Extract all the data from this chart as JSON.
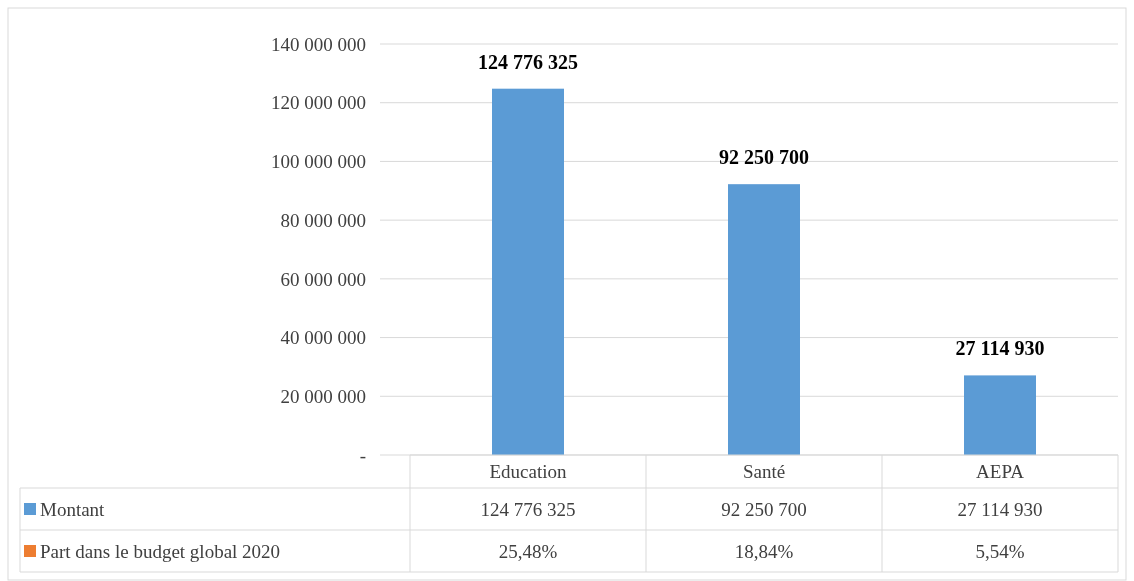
{
  "chart_data": {
    "type": "bar",
    "categories": [
      "Education",
      "Santé",
      "AEPA"
    ],
    "series": [
      {
        "name": "Montant",
        "color": "#5b9bd5",
        "values": [
          124776325,
          92250700,
          27114930
        ],
        "value_labels": [
          "124 776 325",
          "92 250 700",
          "27 114 930"
        ]
      },
      {
        "name": "Part dans le budget global 2020",
        "color": "#ed7d31",
        "values": [
          25.48,
          18.84,
          5.54
        ],
        "value_labels": [
          "25,48%",
          "18,84%",
          "5,54%"
        ]
      }
    ],
    "ylim": [
      0,
      140000000
    ],
    "yticks": [
      {
        "value": 0,
        "label": "-"
      },
      {
        "value": 20000000,
        "label": "20 000 000"
      },
      {
        "value": 40000000,
        "label": "40 000 000"
      },
      {
        "value": 60000000,
        "label": "60 000 000"
      },
      {
        "value": 80000000,
        "label": "80 000 000"
      },
      {
        "value": 100000000,
        "label": "100 000 000"
      },
      {
        "value": 120000000,
        "label": "120 000 000"
      },
      {
        "value": 140000000,
        "label": "140 000 000"
      }
    ],
    "grid": "y",
    "legend": "bottom"
  }
}
